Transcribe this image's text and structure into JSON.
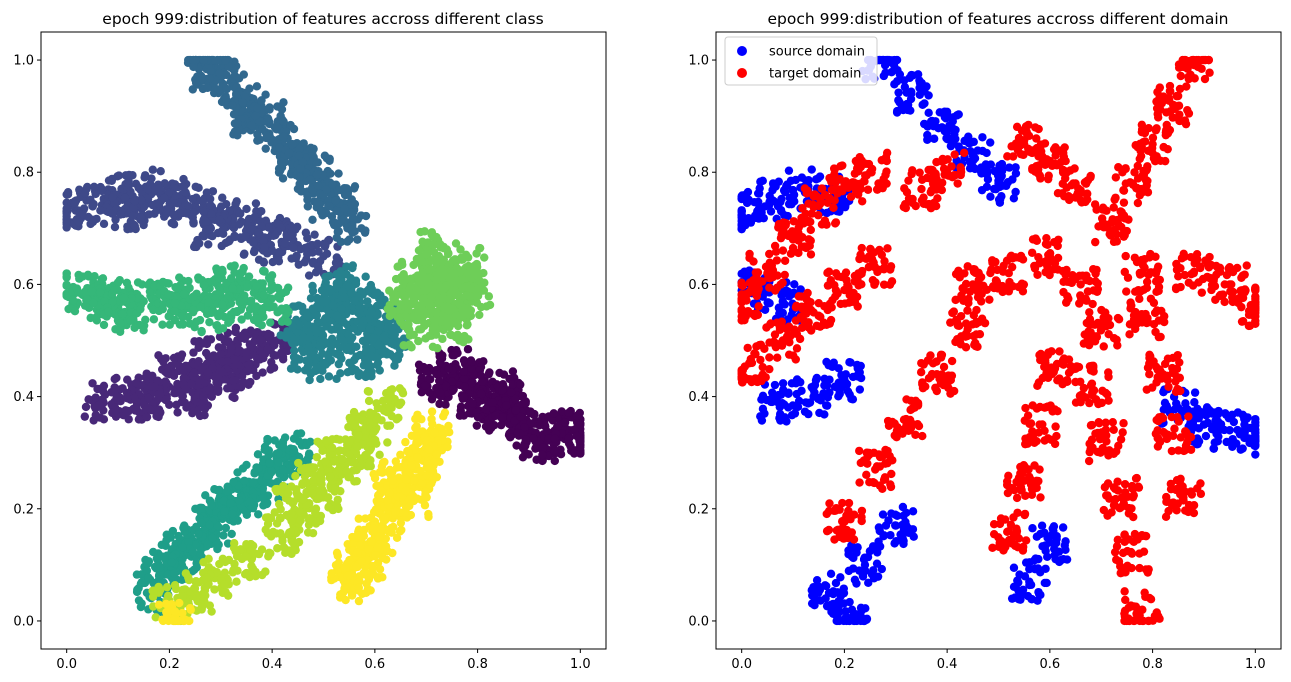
{
  "chart_data": [
    {
      "type": "scatter",
      "title": "epoch 999:distribution of features accross different class",
      "xlim": [
        -0.05,
        1.05
      ],
      "ylim": [
        -0.05,
        1.05
      ],
      "x_ticks": [
        0.0,
        0.2,
        0.4,
        0.6,
        0.8,
        1.0
      ],
      "y_ticks": [
        0.0,
        0.2,
        0.4,
        0.6,
        0.8,
        1.0
      ],
      "x_tick_labels": [
        "0.0",
        "0.2",
        "0.4",
        "0.6",
        "0.8",
        "1.0"
      ],
      "y_tick_labels": [
        "0.0",
        "0.2",
        "0.4",
        "0.6",
        "0.8",
        "1.0"
      ],
      "grid": false,
      "series": [
        {
          "color": "#440154",
          "points": [
            [
              0.8,
              0.4
            ],
            [
              0.85,
              0.37
            ],
            [
              0.9,
              0.34
            ],
            [
              0.95,
              0.33
            ],
            [
              1.0,
              0.33
            ],
            [
              0.78,
              0.43
            ],
            [
              0.84,
              0.41
            ],
            [
              0.88,
              0.36
            ],
            [
              0.92,
              0.32
            ],
            [
              0.76,
              0.45
            ],
            [
              0.82,
              0.38
            ],
            [
              0.74,
              0.42
            ],
            [
              0.86,
              0.39
            ],
            [
              0.97,
              0.34
            ],
            [
              0.72,
              0.44
            ]
          ]
        },
        {
          "color": "#482878",
          "points": [
            [
              0.07,
              0.39
            ],
            [
              0.12,
              0.4
            ],
            [
              0.17,
              0.41
            ],
            [
              0.22,
              0.42
            ],
            [
              0.27,
              0.44
            ],
            [
              0.32,
              0.46
            ],
            [
              0.37,
              0.48
            ],
            [
              0.4,
              0.5
            ],
            [
              0.2,
              0.44
            ],
            [
              0.25,
              0.4
            ],
            [
              0.3,
              0.43
            ],
            [
              0.35,
              0.45
            ],
            [
              0.15,
              0.39
            ],
            [
              0.28,
              0.47
            ],
            [
              0.33,
              0.49
            ]
          ]
        },
        {
          "color": "#3e4989",
          "points": [
            [
              0.0,
              0.73
            ],
            [
              0.05,
              0.74
            ],
            [
              0.1,
              0.76
            ],
            [
              0.15,
              0.77
            ],
            [
              0.2,
              0.76
            ],
            [
              0.25,
              0.74
            ],
            [
              0.3,
              0.72
            ],
            [
              0.35,
              0.71
            ],
            [
              0.4,
              0.69
            ],
            [
              0.45,
              0.67
            ],
            [
              0.5,
              0.65
            ],
            [
              0.18,
              0.74
            ],
            [
              0.28,
              0.7
            ],
            [
              0.38,
              0.67
            ],
            [
              0.12,
              0.73
            ]
          ]
        },
        {
          "color": "#31688e",
          "points": [
            [
              0.27,
              1.0
            ],
            [
              0.3,
              0.97
            ],
            [
              0.33,
              0.94
            ],
            [
              0.36,
              0.92
            ],
            [
              0.39,
              0.89
            ],
            [
              0.42,
              0.86
            ],
            [
              0.45,
              0.83
            ],
            [
              0.48,
              0.8
            ],
            [
              0.5,
              0.77
            ],
            [
              0.53,
              0.74
            ],
            [
              0.55,
              0.71
            ],
            [
              0.35,
              0.9
            ],
            [
              0.44,
              0.82
            ],
            [
              0.51,
              0.75
            ],
            [
              0.28,
              0.98
            ]
          ]
        },
        {
          "color": "#26828e",
          "points": [
            [
              0.48,
              0.5
            ],
            [
              0.52,
              0.55
            ],
            [
              0.56,
              0.58
            ],
            [
              0.6,
              0.55
            ],
            [
              0.63,
              0.5
            ],
            [
              0.5,
              0.46
            ],
            [
              0.55,
              0.52
            ],
            [
              0.58,
              0.47
            ],
            [
              0.45,
              0.53
            ],
            [
              0.53,
              0.6
            ],
            [
              0.61,
              0.49
            ],
            [
              0.57,
              0.56
            ],
            [
              0.47,
              0.48
            ],
            [
              0.62,
              0.53
            ],
            [
              0.51,
              0.57
            ]
          ]
        },
        {
          "color": "#1f9e89",
          "points": [
            [
              0.17,
              0.05
            ],
            [
              0.2,
              0.09
            ],
            [
              0.24,
              0.13
            ],
            [
              0.28,
              0.17
            ],
            [
              0.32,
              0.2
            ],
            [
              0.36,
              0.24
            ],
            [
              0.4,
              0.27
            ],
            [
              0.44,
              0.3
            ],
            [
              0.22,
              0.12
            ],
            [
              0.3,
              0.19
            ],
            [
              0.38,
              0.25
            ],
            [
              0.18,
              0.08
            ],
            [
              0.26,
              0.15
            ],
            [
              0.34,
              0.22
            ],
            [
              0.42,
              0.29
            ]
          ]
        },
        {
          "color": "#35b779",
          "points": [
            [
              0.01,
              0.59
            ],
            [
              0.05,
              0.57
            ],
            [
              0.1,
              0.56
            ],
            [
              0.15,
              0.57
            ],
            [
              0.2,
              0.58
            ],
            [
              0.25,
              0.58
            ],
            [
              0.3,
              0.58
            ],
            [
              0.35,
              0.57
            ],
            [
              0.4,
              0.56
            ],
            [
              0.12,
              0.55
            ],
            [
              0.22,
              0.56
            ],
            [
              0.32,
              0.6
            ],
            [
              0.08,
              0.58
            ],
            [
              0.28,
              0.55
            ],
            [
              0.37,
              0.59
            ]
          ]
        },
        {
          "color": "#6ece58",
          "points": [
            [
              0.68,
              0.58
            ],
            [
              0.72,
              0.62
            ],
            [
              0.76,
              0.6
            ],
            [
              0.7,
              0.55
            ],
            [
              0.74,
              0.57
            ],
            [
              0.78,
              0.63
            ],
            [
              0.71,
              0.66
            ],
            [
              0.75,
              0.53
            ],
            [
              0.67,
              0.61
            ],
            [
              0.79,
              0.59
            ],
            [
              0.73,
              0.64
            ],
            [
              0.69,
              0.52
            ],
            [
              0.77,
              0.56
            ],
            [
              0.72,
              0.59
            ],
            [
              0.66,
              0.56
            ]
          ]
        },
        {
          "color": "#b5de2b",
          "points": [
            [
              0.2,
              0.03
            ],
            [
              0.25,
              0.05
            ],
            [
              0.3,
              0.08
            ],
            [
              0.36,
              0.11
            ],
            [
              0.42,
              0.15
            ],
            [
              0.46,
              0.19
            ],
            [
              0.5,
              0.23
            ],
            [
              0.53,
              0.27
            ],
            [
              0.56,
              0.31
            ],
            [
              0.59,
              0.35
            ],
            [
              0.62,
              0.38
            ],
            [
              0.44,
              0.21
            ],
            [
              0.52,
              0.29
            ],
            [
              0.58,
              0.33
            ],
            [
              0.48,
              0.25
            ]
          ]
        },
        {
          "color": "#fde725",
          "points": [
            [
              0.21,
              0.0
            ],
            [
              0.56,
              0.07
            ],
            [
              0.58,
              0.11
            ],
            [
              0.6,
              0.15
            ],
            [
              0.62,
              0.18
            ],
            [
              0.64,
              0.21
            ],
            [
              0.66,
              0.24
            ],
            [
              0.68,
              0.27
            ],
            [
              0.7,
              0.31
            ],
            [
              0.71,
              0.34
            ],
            [
              0.63,
              0.25
            ],
            [
              0.59,
              0.13
            ],
            [
              0.67,
              0.22
            ],
            [
              0.69,
              0.29
            ],
            [
              0.55,
              0.09
            ]
          ]
        }
      ]
    },
    {
      "type": "scatter",
      "title": "epoch 999:distribution of features accross different domain",
      "xlim": [
        -0.05,
        1.05
      ],
      "ylim": [
        -0.05,
        1.05
      ],
      "x_ticks": [
        0.0,
        0.2,
        0.4,
        0.6,
        0.8,
        1.0
      ],
      "y_ticks": [
        0.0,
        0.2,
        0.4,
        0.6,
        0.8,
        1.0
      ],
      "x_tick_labels": [
        "0.0",
        "0.2",
        "0.4",
        "0.6",
        "0.8",
        "1.0"
      ],
      "y_tick_labels": [
        "0.0",
        "0.2",
        "0.4",
        "0.6",
        "0.8",
        "1.0"
      ],
      "grid": false,
      "legend": "top-left",
      "series": [
        {
          "name": "source domain",
          "color": "#0000ff",
          "points": [
            [
              0.0,
              0.73
            ],
            [
              0.06,
              0.75
            ],
            [
              0.12,
              0.77
            ],
            [
              0.18,
              0.76
            ],
            [
              0.27,
              1.0
            ],
            [
              0.33,
              0.94
            ],
            [
              0.39,
              0.88
            ],
            [
              0.07,
              0.39
            ],
            [
              0.14,
              0.4
            ],
            [
              0.2,
              0.43
            ],
            [
              0.02,
              0.59
            ],
            [
              0.08,
              0.57
            ],
            [
              0.17,
              0.05
            ],
            [
              0.21,
              0.0
            ],
            [
              0.24,
              0.1
            ],
            [
              0.3,
              0.17
            ],
            [
              0.56,
              0.07
            ],
            [
              0.6,
              0.14
            ],
            [
              0.9,
              0.35
            ],
            [
              0.95,
              0.34
            ],
            [
              1.0,
              0.33
            ],
            [
              0.85,
              0.38
            ],
            [
              0.45,
              0.83
            ],
            [
              0.5,
              0.78
            ]
          ]
        },
        {
          "name": "target domain",
          "color": "#ff0000",
          "points": [
            [
              0.0,
              0.57
            ],
            [
              0.05,
              0.62
            ],
            [
              0.1,
              0.68
            ],
            [
              0.15,
              0.74
            ],
            [
              0.2,
              0.78
            ],
            [
              0.25,
              0.8
            ],
            [
              0.02,
              0.46
            ],
            [
              0.08,
              0.5
            ],
            [
              0.14,
              0.55
            ],
            [
              0.2,
              0.59
            ],
            [
              0.26,
              0.63
            ],
            [
              0.2,
              0.18
            ],
            [
              0.26,
              0.27
            ],
            [
              0.32,
              0.36
            ],
            [
              0.38,
              0.44
            ],
            [
              0.44,
              0.52
            ],
            [
              0.52,
              0.16
            ],
            [
              0.55,
              0.25
            ],
            [
              0.58,
              0.35
            ],
            [
              0.61,
              0.45
            ],
            [
              0.78,
              0.02
            ],
            [
              0.76,
              0.12
            ],
            [
              0.74,
              0.22
            ],
            [
              0.71,
              0.32
            ],
            [
              0.68,
              0.42
            ],
            [
              0.86,
              0.22
            ],
            [
              0.84,
              0.33
            ],
            [
              0.82,
              0.44
            ],
            [
              0.79,
              0.54
            ],
            [
              0.88,
              1.0
            ],
            [
              0.84,
              0.92
            ],
            [
              0.8,
              0.85
            ],
            [
              0.76,
              0.78
            ],
            [
              0.72,
              0.71
            ],
            [
              0.55,
              0.85
            ],
            [
              0.6,
              0.82
            ],
            [
              0.65,
              0.78
            ],
            [
              0.78,
              0.62
            ],
            [
              0.88,
              0.62
            ],
            [
              0.95,
              0.6
            ],
            [
              1.0,
              0.56
            ],
            [
              0.6,
              0.65
            ],
            [
              0.52,
              0.62
            ],
            [
              0.45,
              0.6
            ],
            [
              0.4,
              0.8
            ],
            [
              0.35,
              0.77
            ],
            [
              0.66,
              0.6
            ],
            [
              0.7,
              0.52
            ]
          ]
        }
      ]
    }
  ]
}
